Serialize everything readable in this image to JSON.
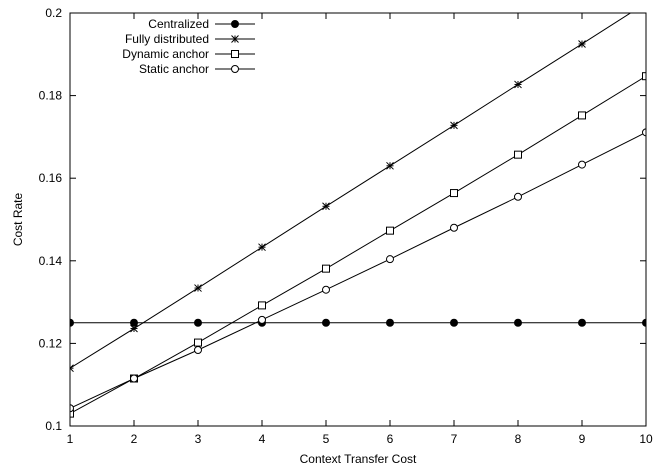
{
  "chart_data": {
    "type": "line",
    "title": "",
    "xlabel": "Context Transfer Cost",
    "ylabel": "Cost Rate",
    "xlim": [
      1,
      10
    ],
    "ylim": [
      0.1,
      0.2
    ],
    "xticks": [
      1,
      2,
      3,
      4,
      5,
      6,
      7,
      8,
      9,
      10
    ],
    "yticks": [
      0.1,
      0.12,
      0.14,
      0.16,
      0.18,
      0.2
    ],
    "grid": false,
    "legend_position": "top-left",
    "x": [
      1,
      2,
      3,
      4,
      5,
      6,
      7,
      8,
      9,
      10
    ],
    "series": [
      {
        "name": "Centralized",
        "marker": "filled-circle",
        "values": [
          0.125,
          0.125,
          0.125,
          0.125,
          0.125,
          0.125,
          0.125,
          0.125,
          0.125,
          0.125
        ]
      },
      {
        "name": "Fully distributed",
        "marker": "asterisk",
        "values": [
          0.114,
          0.1236,
          0.1334,
          0.1433,
          0.1532,
          0.163,
          0.1728,
          0.1827,
          0.1925,
          0.2024
        ]
      },
      {
        "name": "Dynamic anchor",
        "marker": "square",
        "values": [
          0.103,
          0.1115,
          0.1202,
          0.1292,
          0.1381,
          0.1473,
          0.1564,
          0.1657,
          0.1752,
          0.1847
        ]
      },
      {
        "name": "Static anchor",
        "marker": "open-circle",
        "values": [
          0.1043,
          0.1115,
          0.1184,
          0.1257,
          0.133,
          0.1404,
          0.148,
          0.1555,
          0.1633,
          0.1711
        ]
      }
    ]
  }
}
